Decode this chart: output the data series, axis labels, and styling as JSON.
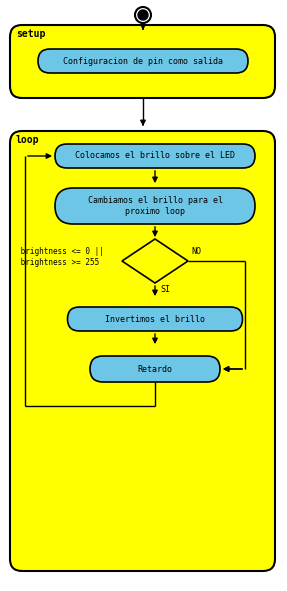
{
  "fig_width": 2.87,
  "fig_height": 5.91,
  "dpi": 100,
  "bg_color": "#ffffff",
  "yellow": "#FFFF00",
  "blue_box": "#6EC6E6",
  "black": "#000000",
  "setup_label": "setup",
  "loop_label": "loop",
  "box1_text": "Configuracion de pin como salida",
  "box2_text": "Colocamos el brillo sobre el LED",
  "box3_text": "Cambiamos el brillo para el\nproximo loop",
  "box4_text": " brightness <= 0 ||\n brightness >= 255",
  "box5_text": "Invertimos el brillo",
  "box6_text": "Retardo",
  "no_label": "NO",
  "si_label": "SI",
  "font_size": 6.0,
  "label_font_size": 7.0
}
